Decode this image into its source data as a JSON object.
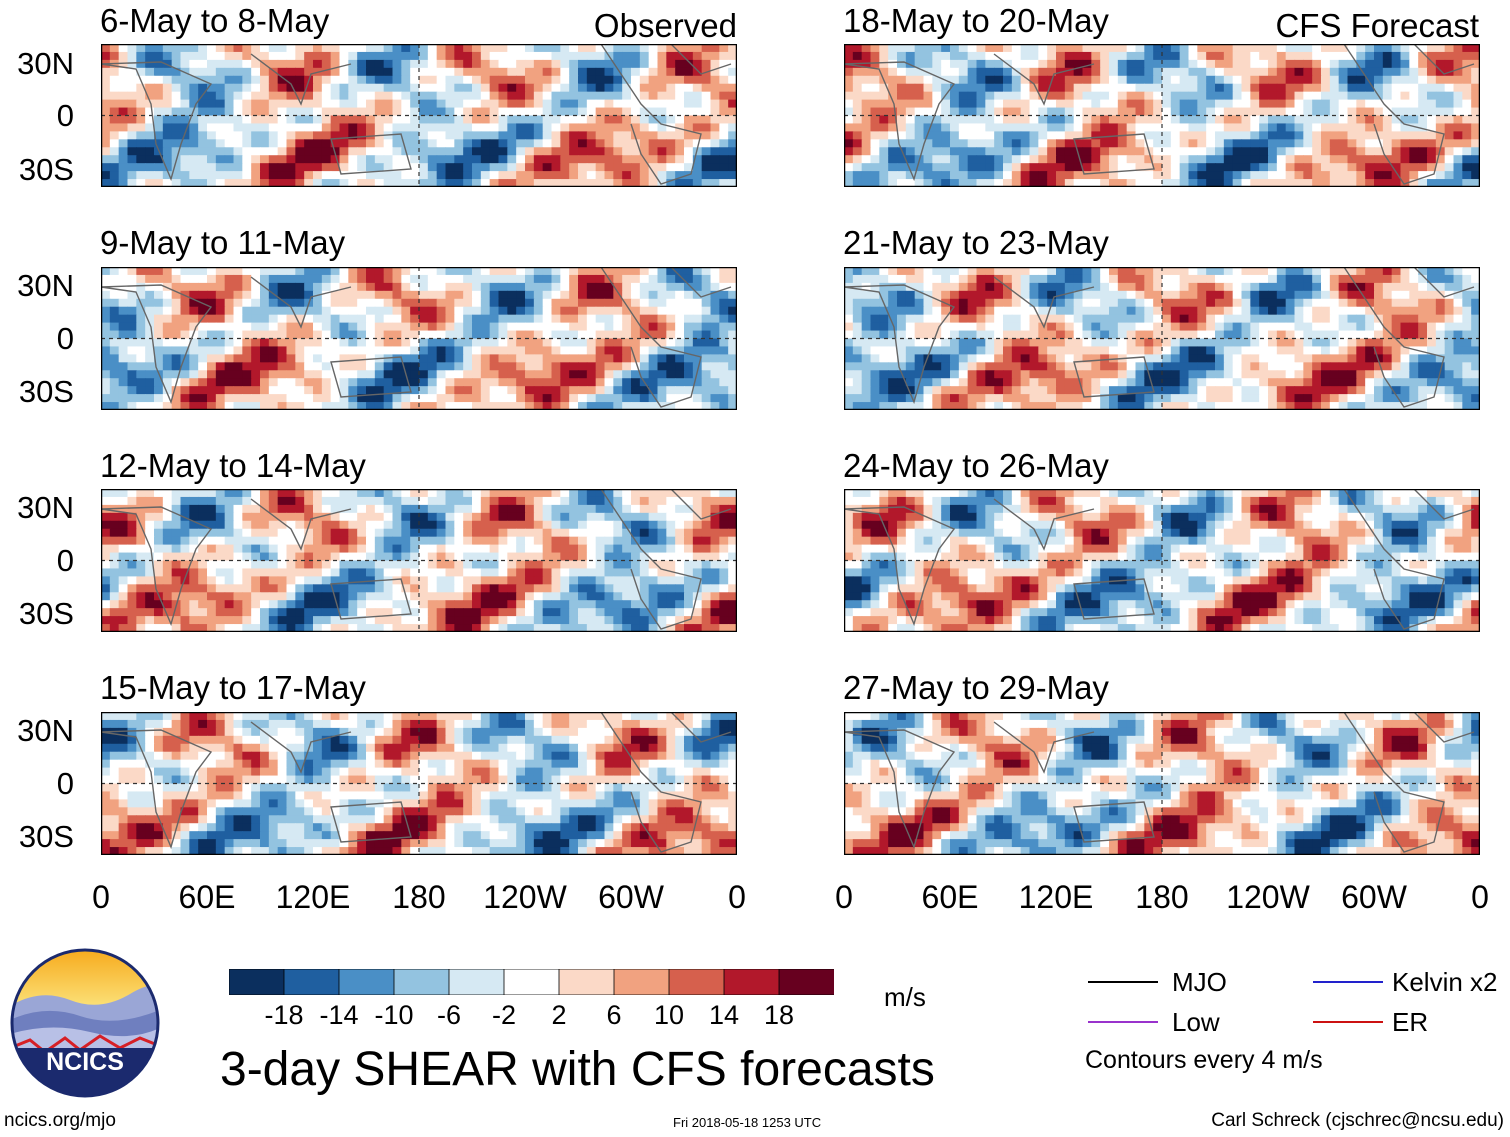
{
  "panels": {
    "observed": [
      {
        "title": "6-May to 8-May",
        "tag": "Observed"
      },
      {
        "title": "9-May to 11-May",
        "tag": ""
      },
      {
        "title": "12-May to 14-May",
        "tag": ""
      },
      {
        "title": "15-May to 17-May",
        "tag": ""
      }
    ],
    "forecast": [
      {
        "title": "18-May to 20-May",
        "tag": "CFS Forecast"
      },
      {
        "title": "21-May to 23-May",
        "tag": ""
      },
      {
        "title": "24-May to 26-May",
        "tag": ""
      },
      {
        "title": "27-May to 29-May",
        "tag": ""
      }
    ]
  },
  "lat_labels": [
    "30N",
    "0",
    "30S"
  ],
  "lon_labels": [
    "0",
    "60E",
    "120E",
    "180",
    "120W",
    "60W",
    "0"
  ],
  "colorbar": {
    "ticks": [
      "-18",
      "-14",
      "-10",
      "-6",
      "-2",
      "2",
      "6",
      "10",
      "14",
      "18"
    ],
    "colors": [
      "#0b2f5e",
      "#1f5fa0",
      "#4a8fc6",
      "#93c3e0",
      "#d6e9f3",
      "#ffffff",
      "#fbd9c7",
      "#f1a280",
      "#d6604d",
      "#b2182b",
      "#67001f"
    ],
    "unit": "m/s"
  },
  "legend": {
    "mjo": {
      "label": "MJO",
      "color": "#000000"
    },
    "kelvin": {
      "label": "Kelvin x2",
      "color": "#2222cc"
    },
    "low": {
      "label": "Low",
      "color": "#9932cc"
    },
    "er": {
      "label": "ER",
      "color": "#cc1111"
    },
    "contours_note": "Contours every 4 m/s"
  },
  "main_title": "3-day SHEAR with CFS forecasts",
  "logo": {
    "text": "NCICS"
  },
  "footer": {
    "url": "ncics.org/mjo",
    "timestamp": "Fri 2018-05-18 1253 UTC",
    "credit": "Carl Schreck (cjschrec@ncsu.edu)"
  },
  "chart_data": {
    "type": "heatmap",
    "variable": "3-day vertical wind shear anomaly",
    "units": "m/s",
    "color_levels": [
      -18,
      -14,
      -10,
      -6,
      -2,
      2,
      6,
      10,
      14,
      18
    ],
    "x_axis": {
      "labels": [
        "0",
        "60E",
        "120E",
        "180",
        "120W",
        "60W",
        "0"
      ],
      "range_deg": [
        0,
        360
      ]
    },
    "y_axis": {
      "labels": [
        "30N",
        "0",
        "30S"
      ],
      "range_deg": [
        -40,
        40
      ]
    },
    "panels": [
      "6-May to 8-May",
      "9-May to 11-May",
      "12-May to 14-May",
      "15-May to 17-May",
      "18-May to 20-May",
      "21-May to 23-May",
      "24-May to 26-May",
      "27-May to 29-May"
    ],
    "overlay_contours": [
      "MJO",
      "Low",
      "Kelvin x2",
      "ER"
    ]
  }
}
